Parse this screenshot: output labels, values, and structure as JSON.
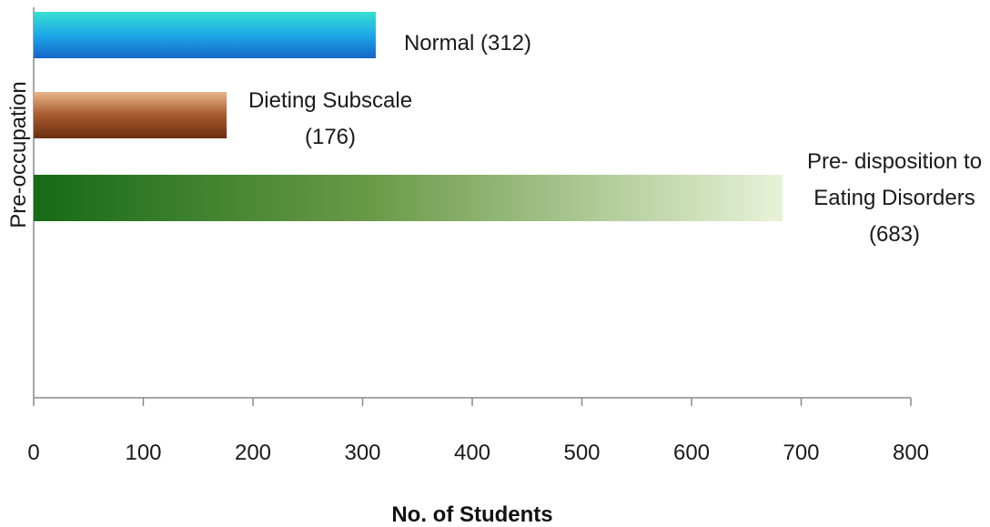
{
  "chart_data": {
    "type": "bar",
    "orientation": "horizontal",
    "ylabel": "Pre-occupation",
    "xlabel": "No. of Students",
    "xlim": [
      0,
      800
    ],
    "xticks": [
      0,
      100,
      200,
      300,
      400,
      500,
      600,
      700,
      800
    ],
    "grid": false,
    "series": [
      {
        "label_lines": [
          "Normal (312)"
        ],
        "value": 312,
        "color": "#1e90e0"
      },
      {
        "label_lines": [
          "Dieting Subscale",
          "(176)"
        ],
        "value": 176,
        "color": "#a0522d"
      },
      {
        "label_lines": [
          "Pre- disposition to",
          "Eating Disorders",
          "(683)"
        ],
        "value": 683,
        "color": "#1e6e1e"
      }
    ]
  }
}
